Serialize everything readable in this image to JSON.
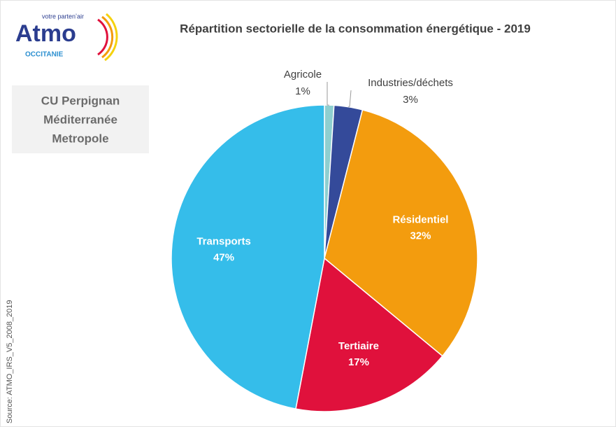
{
  "chart_data": {
    "type": "pie",
    "title": "Répartition sectorielle de la consommation énergétique - 2019",
    "subtitle": [
      "CU Perpignan",
      "Méditerranée",
      "Metropole"
    ],
    "logo": {
      "name": "Atmo",
      "tagline": "votre partenʼair",
      "region": "OCCITANIE"
    },
    "source": "Source: ATMO_IRS_V5_2008_2019",
    "categories": [
      "Agricole",
      "Industries/déchets",
      "Résidentiel",
      "Tertiaire",
      "Transports"
    ],
    "values": [
      1,
      3,
      32,
      17,
      47
    ],
    "value_labels": [
      "1%",
      "3%",
      "32%",
      "17%",
      "47%"
    ],
    "colors": [
      "#8ecfd0",
      "#344a9a",
      "#f39c0e",
      "#e0113c",
      "#35bdea"
    ]
  }
}
